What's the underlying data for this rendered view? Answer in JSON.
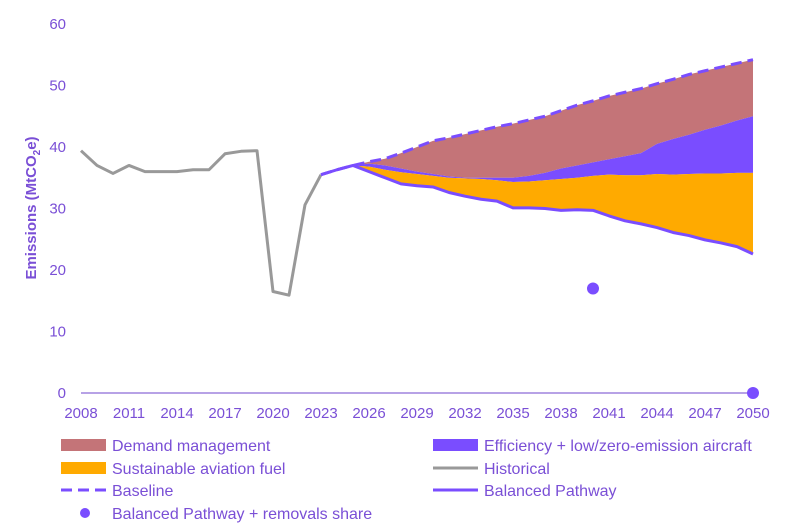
{
  "chart_data": {
    "type": "area",
    "title": "",
    "xlabel": "",
    "ylabel_parts": [
      "Emissions (MtCO",
      "2",
      "e)"
    ],
    "xlim": [
      2008,
      2050
    ],
    "ylim": [
      0,
      60
    ],
    "x_ticks": [
      2008,
      2011,
      2014,
      2017,
      2020,
      2023,
      2026,
      2029,
      2032,
      2035,
      2038,
      2041,
      2044,
      2047,
      2050
    ],
    "y_ticks": [
      0,
      10,
      20,
      30,
      40,
      50,
      60
    ],
    "grid": false,
    "legend_position": "bottom",
    "colors": {
      "demand": "#c47478",
      "efficiency": "#7a4dff",
      "saf": "#ffaa00",
      "historical": "#999999",
      "baseline": "#7a4dff",
      "balanced": "#7a4dff",
      "removals": "#7a4dff",
      "axis": "#8c6ad8",
      "tick": "#7a4fd6"
    },
    "legend": {
      "demand": "Demand management",
      "efficiency": "Efficiency + low/zero-emission aircraft",
      "saf": "Sustainable aviation fuel",
      "historical": "Historical",
      "baseline": "Baseline",
      "balanced": "Balanced Pathway",
      "removals": "Balanced Pathway + removals share"
    },
    "historical": {
      "x": [
        2008,
        2009,
        2010,
        2011,
        2012,
        2013,
        2014,
        2015,
        2016,
        2017,
        2018,
        2019,
        2020,
        2021,
        2022,
        2023
      ],
      "y": [
        39.4,
        37.0,
        35.7,
        37.0,
        36.0,
        36.0,
        36.0,
        36.3,
        36.3,
        38.9,
        39.3,
        39.4,
        16.5,
        15.9,
        30.6,
        35.5
      ]
    },
    "projection_x": [
      2023,
      2024,
      2025,
      2026,
      2027,
      2028,
      2029,
      2030,
      2031,
      2032,
      2033,
      2034,
      2035,
      2036,
      2037,
      2038,
      2039,
      2040,
      2041,
      2042,
      2043,
      2044,
      2045,
      2046,
      2047,
      2048,
      2049,
      2050
    ],
    "baseline": [
      35.5,
      36.3,
      37.0,
      37.6,
      38.1,
      39.0,
      40.0,
      41.0,
      41.5,
      42.1,
      42.7,
      43.3,
      43.8,
      44.4,
      45.0,
      45.9,
      46.8,
      47.5,
      48.3,
      48.9,
      49.5,
      50.3,
      51.0,
      51.8,
      52.4,
      53.0,
      53.6,
      54.2
    ],
    "efficiency_top": [
      35.5,
      36.3,
      37.0,
      37.3,
      37.0,
      36.5,
      36.0,
      35.6,
      35.2,
      35.0,
      35.0,
      35.0,
      35.0,
      35.3,
      35.8,
      36.5,
      37.0,
      37.5,
      38.0,
      38.5,
      39.0,
      40.5,
      41.3,
      42.0,
      42.8,
      43.5,
      44.3,
      45.0
    ],
    "saf_top": [
      35.5,
      36.3,
      37.0,
      36.8,
      36.3,
      35.9,
      35.6,
      35.3,
      35.0,
      34.9,
      34.8,
      34.6,
      34.3,
      34.4,
      34.6,
      34.8,
      35.0,
      35.3,
      35.5,
      35.4,
      35.4,
      35.6,
      35.5,
      35.6,
      35.7,
      35.7,
      35.8,
      35.8
    ],
    "balanced": [
      35.5,
      36.3,
      37.0,
      36.0,
      35.0,
      34.0,
      33.7,
      33.5,
      32.6,
      32.0,
      31.5,
      31.2,
      30.1,
      30.1,
      30.0,
      29.7,
      29.8,
      29.7,
      28.8,
      28.0,
      27.5,
      26.9,
      26.1,
      25.6,
      24.9,
      24.4,
      23.8,
      22.6
    ],
    "removals_points": [
      {
        "x": 2040,
        "y": 17.0
      },
      {
        "x": 2050,
        "y": 0
      }
    ]
  }
}
